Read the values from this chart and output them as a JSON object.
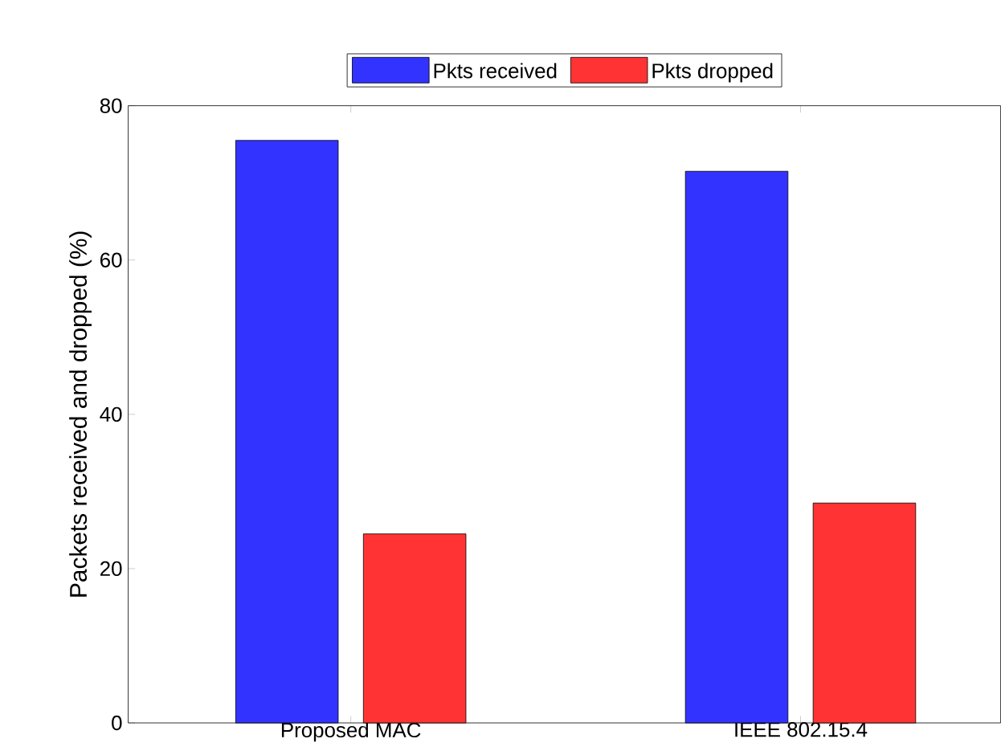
{
  "chart_data": {
    "type": "bar",
    "ylabel": "Packets received and dropped (%)",
    "categories": [
      "Proposed MAC",
      "IEEE 802.15.4"
    ],
    "series": [
      {
        "name": "Pkts received",
        "color": "#3333ff",
        "values": [
          75.5,
          71.5
        ]
      },
      {
        "name": "Pkts dropped",
        "color": "#ff3333",
        "values": [
          24.5,
          28.5
        ]
      }
    ],
    "ylim": [
      0,
      80
    ],
    "yticks": [
      0,
      20,
      40,
      60,
      80
    ],
    "legend": "top"
  }
}
